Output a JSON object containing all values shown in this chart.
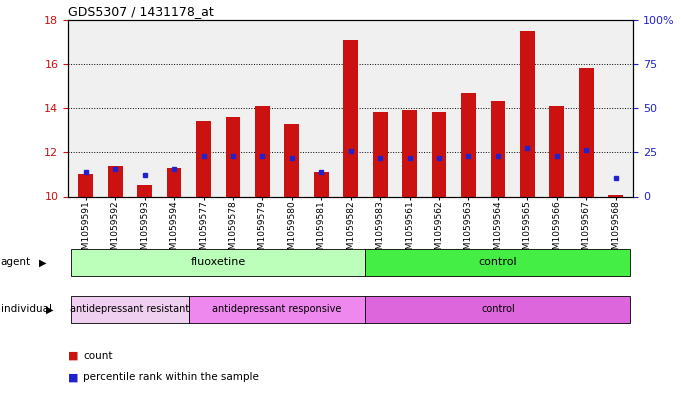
{
  "title": "GDS5307 / 1431178_at",
  "samples": [
    "GSM1059591",
    "GSM1059592",
    "GSM1059593",
    "GSM1059594",
    "GSM1059577",
    "GSM1059578",
    "GSM1059579",
    "GSM1059580",
    "GSM1059581",
    "GSM1059582",
    "GSM1059583",
    "GSM1059561",
    "GSM1059562",
    "GSM1059563",
    "GSM1059564",
    "GSM1059565",
    "GSM1059566",
    "GSM1059567",
    "GSM1059568"
  ],
  "red_bar_heights": [
    11.0,
    11.4,
    10.5,
    11.3,
    13.4,
    13.6,
    14.1,
    13.3,
    11.1,
    17.1,
    13.8,
    13.9,
    13.8,
    14.7,
    14.3,
    17.5,
    14.1,
    15.8,
    10.05
  ],
  "blue_marker_vals": [
    11.1,
    11.25,
    10.95,
    11.25,
    11.85,
    11.85,
    11.85,
    11.75,
    11.1,
    12.05,
    11.75,
    11.75,
    11.75,
    11.85,
    11.85,
    12.2,
    11.85,
    12.1,
    10.85
  ],
  "ylim": [
    10,
    18
  ],
  "yticks_left": [
    10,
    12,
    14,
    16,
    18
  ],
  "yticks_right": [
    0,
    25,
    50,
    75,
    100
  ],
  "yticks_right_labels": [
    "0",
    "25",
    "50",
    "75",
    "100%"
  ],
  "bar_color": "#cc1111",
  "marker_color": "#2222cc",
  "background_plot": "#f0f0f0",
  "agent_groups": [
    {
      "label": "fluoxetine",
      "start": 0,
      "end": 10,
      "color": "#bbffbb"
    },
    {
      "label": "control",
      "start": 10,
      "end": 19,
      "color": "#44ee44"
    }
  ],
  "individual_groups": [
    {
      "label": "antidepressant resistant",
      "start": 0,
      "end": 4,
      "color": "#f0d0f0"
    },
    {
      "label": "antidepressant responsive",
      "start": 4,
      "end": 10,
      "color": "#ee88ee"
    },
    {
      "label": "control",
      "start": 10,
      "end": 19,
      "color": "#dd66dd"
    }
  ],
  "legend_count_color": "#cc1111",
  "legend_marker_color": "#2222cc",
  "left_axis_color": "#cc1111",
  "right_axis_color": "#2222cc",
  "bar_width": 0.5
}
